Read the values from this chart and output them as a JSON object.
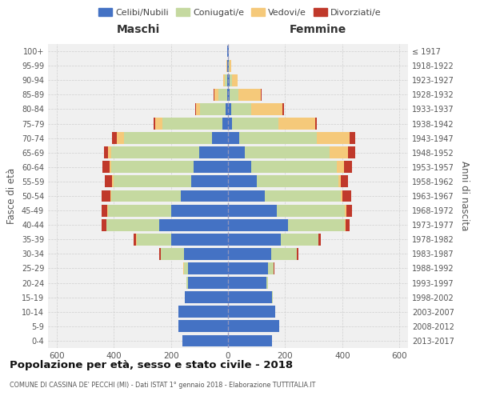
{
  "age_groups": [
    "0-4",
    "5-9",
    "10-14",
    "15-19",
    "20-24",
    "25-29",
    "30-34",
    "35-39",
    "40-44",
    "45-49",
    "50-54",
    "55-59",
    "60-64",
    "65-69",
    "70-74",
    "75-79",
    "80-84",
    "85-89",
    "90-94",
    "95-99",
    "100+"
  ],
  "birth_years": [
    "2013-2017",
    "2008-2012",
    "2003-2007",
    "1998-2002",
    "1993-1997",
    "1988-1992",
    "1983-1987",
    "1978-1982",
    "1973-1977",
    "1968-1972",
    "1963-1967",
    "1958-1962",
    "1953-1957",
    "1948-1952",
    "1943-1947",
    "1938-1942",
    "1933-1937",
    "1928-1932",
    "1923-1927",
    "1918-1922",
    "≤ 1917"
  ],
  "males": {
    "celibi": [
      160,
      175,
      175,
      150,
      140,
      140,
      155,
      200,
      240,
      200,
      165,
      130,
      120,
      100,
      55,
      20,
      8,
      4,
      4,
      2,
      2
    ],
    "coniugati": [
      0,
      0,
      0,
      0,
      5,
      15,
      80,
      120,
      185,
      220,
      245,
      270,
      290,
      310,
      310,
      210,
      90,
      30,
      8,
      2,
      0
    ],
    "vedovi": [
      0,
      0,
      0,
      0,
      0,
      1,
      1,
      1,
      2,
      2,
      3,
      5,
      5,
      10,
      25,
      25,
      15,
      15,
      4,
      2,
      0
    ],
    "divorziati": [
      0,
      0,
      0,
      0,
      0,
      1,
      5,
      10,
      15,
      20,
      30,
      25,
      25,
      15,
      15,
      5,
      2,
      2,
      0,
      0,
      0
    ]
  },
  "females": {
    "nubili": [
      155,
      180,
      165,
      155,
      135,
      140,
      150,
      185,
      210,
      170,
      130,
      100,
      80,
      60,
      40,
      15,
      10,
      5,
      5,
      3,
      2
    ],
    "coniugate": [
      0,
      0,
      0,
      1,
      5,
      20,
      90,
      130,
      200,
      240,
      265,
      285,
      300,
      295,
      270,
      160,
      70,
      30,
      8,
      2,
      0
    ],
    "vedove": [
      0,
      0,
      0,
      0,
      0,
      0,
      0,
      1,
      2,
      3,
      5,
      10,
      25,
      65,
      115,
      130,
      110,
      80,
      20,
      5,
      2
    ],
    "divorziate": [
      0,
      0,
      0,
      0,
      0,
      1,
      5,
      10,
      15,
      20,
      30,
      25,
      30,
      25,
      20,
      5,
      5,
      2,
      0,
      0,
      0
    ]
  },
  "colors": {
    "celibi_nubili": "#4472C4",
    "coniugati": "#c5d9a0",
    "vedovi": "#f5c97a",
    "divorziati": "#c0392b"
  },
  "title": "Popolazione per età, sesso e stato civile - 2018",
  "subtitle": "COMUNE DI CASSINA DE' PECCHI (MI) - Dati ISTAT 1° gennaio 2018 - Elaborazione TUTTITALIA.IT",
  "xlabel_left": "Maschi",
  "xlabel_right": "Femmine",
  "ylabel_left": "Fasce di età",
  "ylabel_right": "Anni di nascita",
  "xlim": 630,
  "bg_color": "#ffffff",
  "plot_bg_color": "#f0f0f0",
  "grid_color": "#cccccc"
}
